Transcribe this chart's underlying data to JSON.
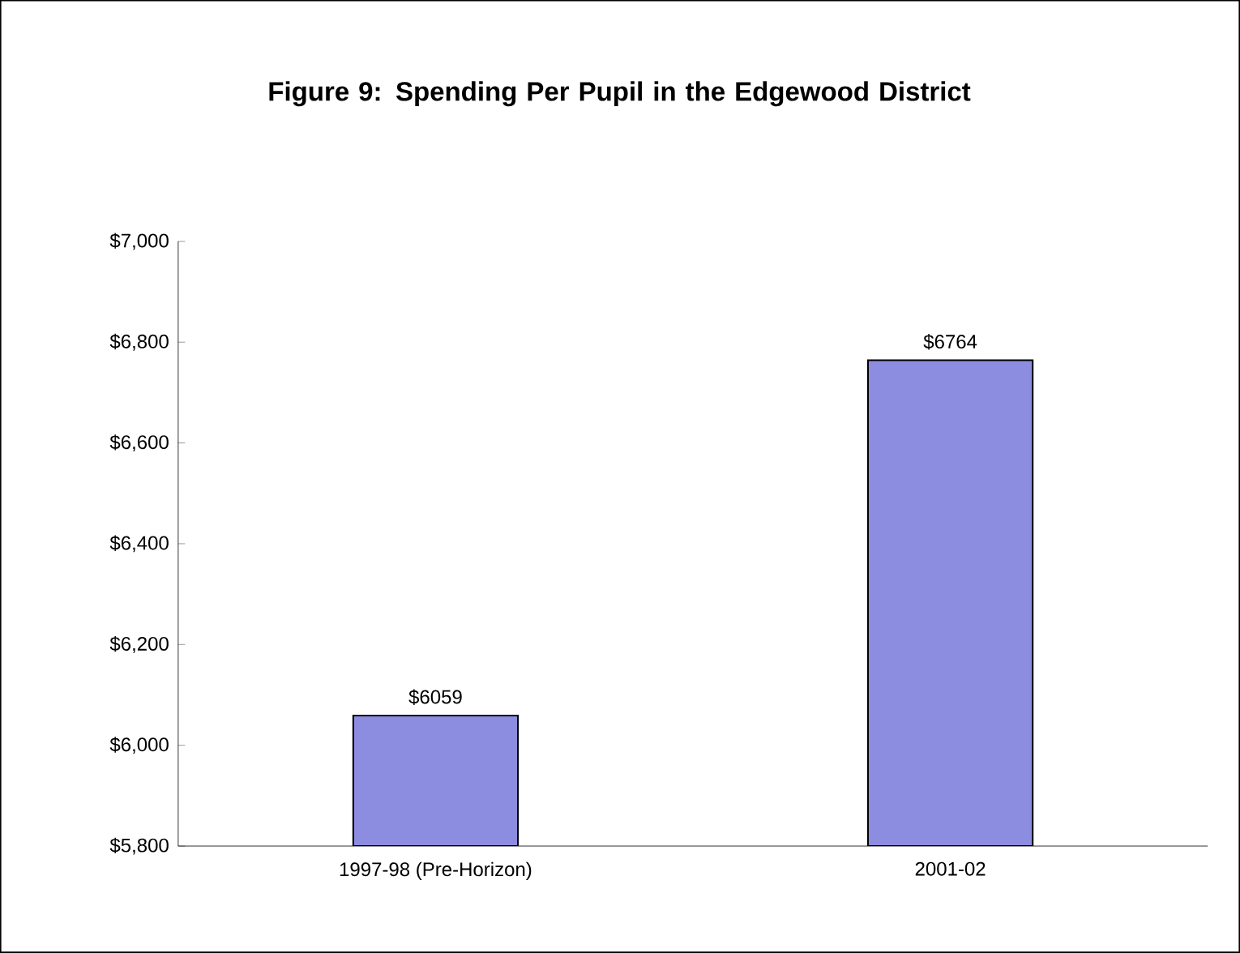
{
  "chart_data": {
    "type": "bar",
    "title": "Figure 9: Spending Per Pupil in the Edgewood District",
    "categories": [
      "1997-98 (Pre-Horizon)",
      "2001-02"
    ],
    "values": [
      6059,
      6764
    ],
    "value_labels": [
      "$6059",
      "$6764"
    ],
    "color": "#8c8ce0",
    "ylim": [
      5800,
      7000
    ],
    "yticks": [
      {
        "value": 5800,
        "label": "$5,800"
      },
      {
        "value": 6000,
        "label": "$6,000"
      },
      {
        "value": 6200,
        "label": "$6,200"
      },
      {
        "value": 6400,
        "label": "$6,400"
      },
      {
        "value": 6600,
        "label": "$6,600"
      },
      {
        "value": 6800,
        "label": "$6,800"
      },
      {
        "value": 7000,
        "label": "$7,000"
      }
    ]
  }
}
